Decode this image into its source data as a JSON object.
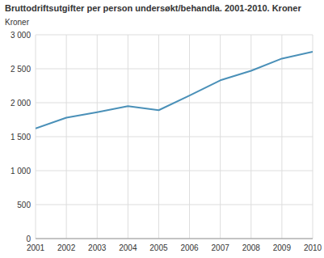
{
  "chart_data": {
    "type": "line",
    "title": "Bruttodriftsutgifter per person undersøkt/behandla. 2001-2010. Kroner",
    "y_label": "Kroner",
    "x": [
      2001,
      2002,
      2003,
      2004,
      2005,
      2006,
      2007,
      2008,
      2009,
      2010
    ],
    "values": [
      1620,
      1780,
      1860,
      1950,
      1890,
      2105,
      2330,
      2470,
      2650,
      2750
    ],
    "color": "#4a90b8",
    "xlim": [
      2001,
      2010
    ],
    "xticks": [
      2001,
      2002,
      2003,
      2004,
      2005,
      2006,
      2007,
      2008,
      2009,
      2010
    ],
    "ylim": [
      0,
      3000
    ],
    "yticks": [
      0,
      500,
      {
        "value": 1000,
        "label": "1 000"
      },
      {
        "value": 1500,
        "label": "1 500"
      },
      {
        "value": 2000,
        "label": "2 000"
      },
      {
        "value": 2500,
        "label": "2 500"
      },
      {
        "value": 3000,
        "label": "3 000"
      }
    ],
    "grid": true
  }
}
